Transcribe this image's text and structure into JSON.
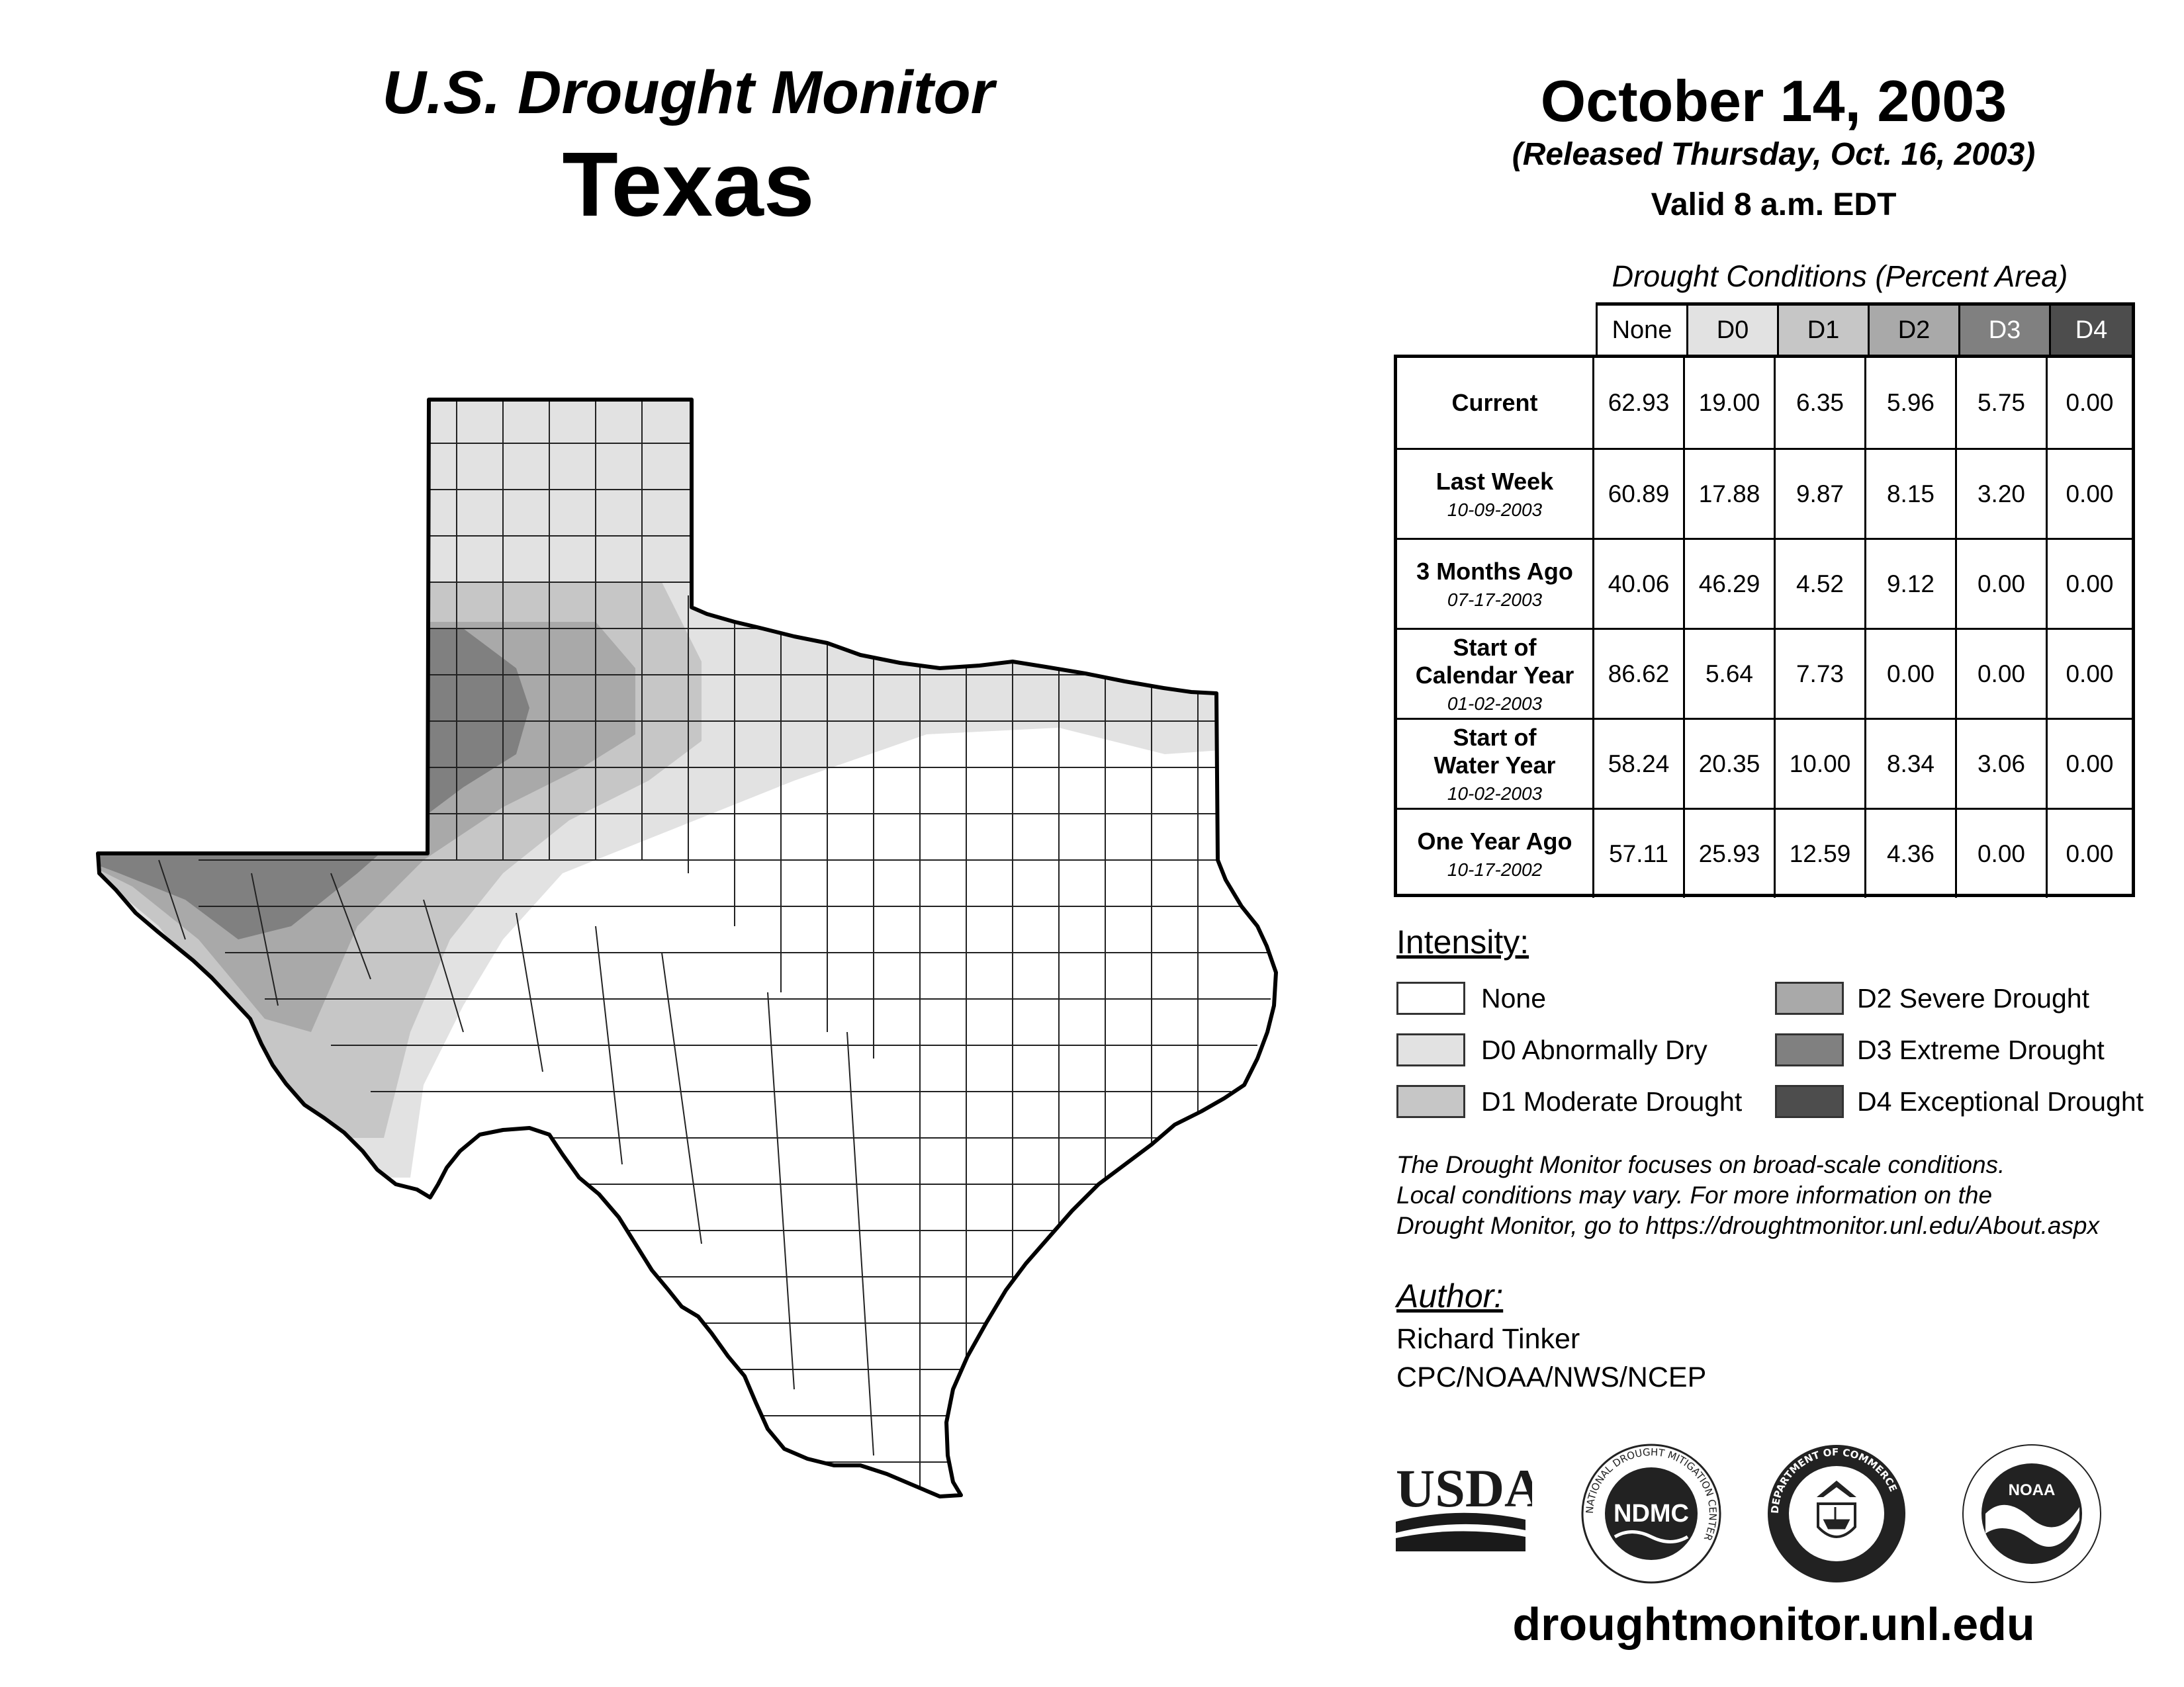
{
  "header": {
    "monitor_title": "U.S. Drought Monitor",
    "state": "Texas",
    "date": "October 14, 2003",
    "released": "(Released Thursday, Oct. 16, 2003)",
    "valid": "Valid 8 a.m. EDT"
  },
  "table": {
    "caption": "Drought Conditions (Percent Area)",
    "columns": [
      "None",
      "D0",
      "D1",
      "D2",
      "D3",
      "D4"
    ],
    "rows": [
      {
        "label": "Current",
        "date": "",
        "values": [
          "62.93",
          "19.00",
          "6.35",
          "5.96",
          "5.75",
          "0.00"
        ]
      },
      {
        "label": "Last Week",
        "date": "10-09-2003",
        "values": [
          "60.89",
          "17.88",
          "9.87",
          "8.15",
          "3.20",
          "0.00"
        ]
      },
      {
        "label": "3 Months Ago",
        "date": "07-17-2003",
        "values": [
          "40.06",
          "46.29",
          "4.52",
          "9.12",
          "0.00",
          "0.00"
        ]
      },
      {
        "label": "Start of Calendar Year",
        "date": "01-02-2003",
        "values": [
          "86.62",
          "5.64",
          "7.73",
          "0.00",
          "0.00",
          "0.00"
        ]
      },
      {
        "label": "Start of Water Year",
        "date": "10-02-2003",
        "values": [
          "58.24",
          "20.35",
          "10.00",
          "8.34",
          "3.06",
          "0.00"
        ]
      },
      {
        "label": "One Year Ago",
        "date": "10-17-2002",
        "values": [
          "57.11",
          "25.93",
          "12.59",
          "4.36",
          "0.00",
          "0.00"
        ]
      }
    ]
  },
  "legend": {
    "heading": "Intensity:",
    "items": [
      {
        "label": "None",
        "color": "#ffffff"
      },
      {
        "label": "D0 Abnormally Dry",
        "color": "#e2e2e2"
      },
      {
        "label": "D1 Moderate Drought",
        "color": "#c6c6c6"
      },
      {
        "label": "D2 Severe Drought",
        "color": "#a9a9a9"
      },
      {
        "label": "D3 Extreme Drought",
        "color": "#808080"
      },
      {
        "label": "D4 Exceptional Drought",
        "color": "#4d4d4d"
      }
    ]
  },
  "note": [
    "The Drought Monitor focuses on broad-scale conditions.",
    "Local conditions may vary. For more information on the",
    "Drought Monitor, go to https://droughtmonitor.unl.edu/About.aspx"
  ],
  "author": {
    "heading": "Author:",
    "name": "Richard Tinker",
    "org": "CPC/NOAA/NWS/NCEP"
  },
  "logos": {
    "usda": "USDA",
    "ndmc": "NDMC",
    "ndmc_ring": "NATIONAL DROUGHT MITIGATION CENTER",
    "commerce_ring": "DEPARTMENT OF COMMERCE",
    "noaa": "NOAA"
  },
  "footer_url": "droughtmonitor.unl.edu"
}
